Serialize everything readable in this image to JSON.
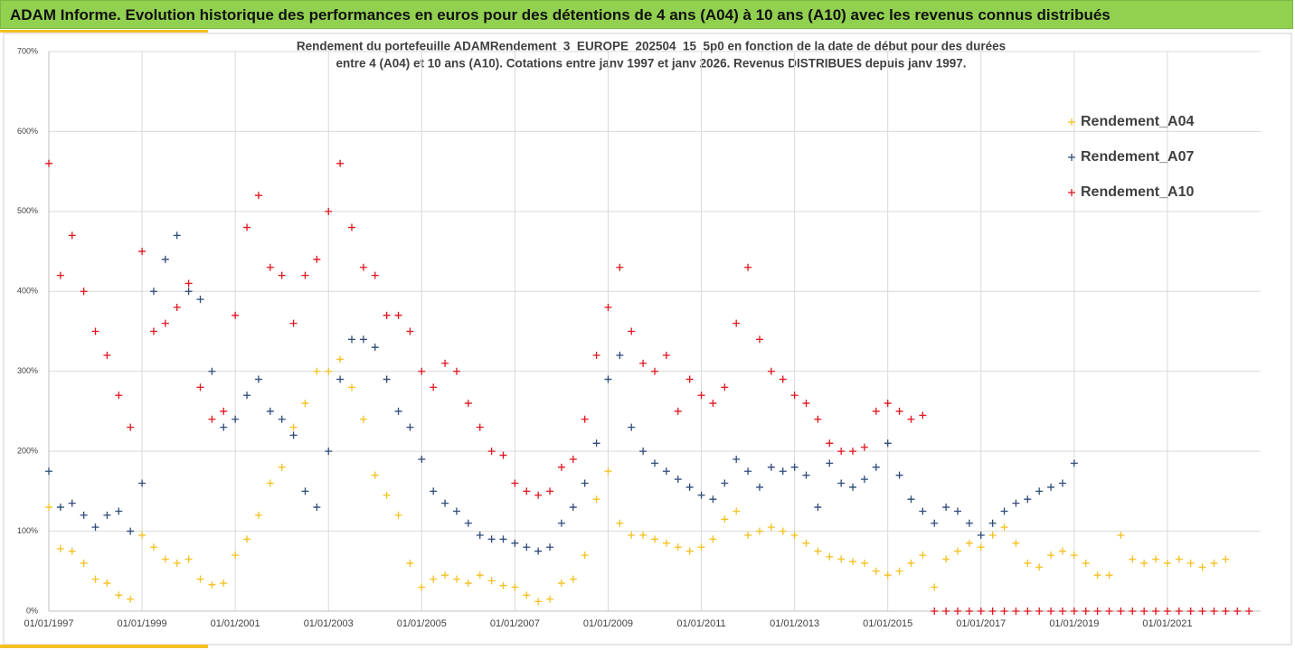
{
  "header": {
    "title": "ADAM Informe. Evolution historique des performances en euros pour des détentions de 4 ans (A04) à 10 ans (A10) avec les revenus connus distribués"
  },
  "chart_data": {
    "type": "scatter",
    "title_lines": [
      "Rendement du portefeuille ADAMRendement_3_EUROPE_202504_15_5p0  en fonction de la date de début pour des durées",
      "entre 4 (A04) et 10 ans (A10). Cotations entre janv 1997 et janv 2026. Revenus DISTRIBUES depuis janv 1997."
    ],
    "x": [
      1997,
      1997.25,
      1997.5,
      1997.75,
      1998,
      1998.25,
      1998.5,
      1998.75,
      1999,
      1999.25,
      1999.5,
      1999.75,
      2000,
      2000.25,
      2000.5,
      2000.75,
      2001,
      2001.25,
      2001.5,
      2001.75,
      2002,
      2002.25,
      2002.5,
      2002.75,
      2003,
      2003.25,
      2003.5,
      2003.75,
      2004,
      2004.25,
      2004.5,
      2004.75,
      2005,
      2005.25,
      2005.5,
      2005.75,
      2006,
      2006.25,
      2006.5,
      2006.75,
      2007,
      2007.25,
      2007.5,
      2007.75,
      2008,
      2008.25,
      2008.5,
      2008.75,
      2009,
      2009.25,
      2009.5,
      2009.75,
      2010,
      2010.25,
      2010.5,
      2010.75,
      2011,
      2011.25,
      2011.5,
      2011.75,
      2012,
      2012.25,
      2012.5,
      2012.75,
      2013,
      2013.25,
      2013.5,
      2013.75,
      2014,
      2014.25,
      2014.5,
      2014.75,
      2015,
      2015.25,
      2015.5,
      2015.75,
      2016,
      2016.25,
      2016.5,
      2016.75,
      2017,
      2017.25,
      2017.5,
      2017.75,
      2018,
      2018.25,
      2018.5,
      2018.75,
      2019,
      2019.25,
      2019.5,
      2019.75,
      2020,
      2020.25,
      2020.5,
      2020.75,
      2021,
      2021.25,
      2021.5,
      2021.75,
      2022,
      2022.25,
      2022.5,
      2022.75
    ],
    "series": [
      {
        "name": "Rendement_A04",
        "color": "#f5c021",
        "values": [
          130,
          78,
          75,
          60,
          40,
          35,
          20,
          15,
          95,
          80,
          65,
          60,
          65,
          40,
          33,
          35,
          70,
          90,
          120,
          160,
          180,
          230,
          260,
          300,
          300,
          315,
          280,
          240,
          170,
          145,
          120,
          60,
          30,
          40,
          45,
          40,
          35,
          45,
          38,
          32,
          30,
          20,
          12,
          15,
          35,
          40,
          70,
          140,
          175,
          110,
          95,
          95,
          90,
          85,
          80,
          75,
          80,
          90,
          115,
          125,
          95,
          100,
          105,
          100,
          95,
          85,
          75,
          68,
          65,
          62,
          60,
          50,
          45,
          50,
          60,
          70,
          30,
          65,
          75,
          85,
          80,
          95,
          105,
          85,
          60,
          55,
          70,
          75,
          70,
          60,
          45,
          45,
          95,
          65,
          60,
          65,
          60,
          65,
          60,
          55,
          60,
          65,
          null,
          null
        ]
      },
      {
        "name": "Rendement_A07",
        "color": "#2f4a7a",
        "values": [
          175,
          130,
          135,
          120,
          105,
          120,
          125,
          100,
          160,
          400,
          440,
          470,
          400,
          390,
          300,
          230,
          240,
          270,
          290,
          250,
          240,
          220,
          150,
          130,
          200,
          290,
          340,
          340,
          330,
          290,
          250,
          230,
          190,
          150,
          135,
          125,
          110,
          95,
          90,
          90,
          85,
          80,
          75,
          80,
          110,
          130,
          160,
          210,
          290,
          320,
          230,
          200,
          185,
          175,
          165,
          155,
          145,
          140,
          160,
          190,
          175,
          155,
          180,
          175,
          180,
          170,
          130,
          185,
          160,
          155,
          165,
          180,
          210,
          170,
          140,
          125,
          110,
          130,
          125,
          110,
          95,
          110,
          125,
          135,
          140,
          150,
          155,
          160,
          185,
          null,
          null,
          null,
          null,
          null,
          null,
          null,
          null,
          null,
          null,
          null,
          null,
          null,
          null,
          null
        ]
      },
      {
        "name": "Rendement_A10",
        "color": "#e0141e",
        "values": [
          560,
          420,
          470,
          400,
          350,
          320,
          270,
          230,
          450,
          350,
          360,
          380,
          410,
          280,
          240,
          250,
          370,
          480,
          520,
          430,
          420,
          360,
          420,
          440,
          500,
          560,
          480,
          430,
          420,
          370,
          370,
          350,
          300,
          280,
          310,
          300,
          260,
          230,
          200,
          195,
          160,
          150,
          145,
          150,
          180,
          190,
          240,
          320,
          380,
          430,
          350,
          310,
          300,
          320,
          250,
          290,
          270,
          260,
          280,
          360,
          430,
          340,
          300,
          290,
          270,
          260,
          240,
          210,
          200,
          200,
          205,
          250,
          260,
          250,
          240,
          245,
          0,
          0,
          0,
          0,
          0,
          0,
          0,
          0,
          0,
          0,
          0,
          0,
          0,
          0,
          0,
          0,
          0,
          0,
          0,
          0,
          0,
          0,
          0,
          0,
          0,
          0,
          0,
          0
        ]
      }
    ],
    "xlim": [
      1997,
      2023
    ],
    "xticks": [
      {
        "value": 1997,
        "label": "01/01/1997"
      },
      {
        "value": 1999,
        "label": "01/01/1999"
      },
      {
        "value": 2001,
        "label": "01/01/2001"
      },
      {
        "value": 2003,
        "label": "01/01/2003"
      },
      {
        "value": 2005,
        "label": "01/01/2005"
      },
      {
        "value": 2007,
        "label": "01/01/2007"
      },
      {
        "value": 2009,
        "label": "01/01/2009"
      },
      {
        "value": 2011,
        "label": "01/01/2011"
      },
      {
        "value": 2013,
        "label": "01/01/2013"
      },
      {
        "value": 2015,
        "label": "01/01/2015"
      },
      {
        "value": 2017,
        "label": "01/01/2017"
      },
      {
        "value": 2019,
        "label": "01/01/2019"
      },
      {
        "value": 2021,
        "label": "01/01/2021"
      }
    ],
    "ylim": [
      0,
      700
    ],
    "yticks": [
      {
        "value": 0,
        "label": "0%"
      },
      {
        "value": 100,
        "label": "100%"
      },
      {
        "value": 200,
        "label": "200%"
      },
      {
        "value": 300,
        "label": "300%"
      },
      {
        "value": 400,
        "label": "400%"
      },
      {
        "value": 500,
        "label": "500%"
      },
      {
        "value": 600,
        "label": "600%"
      },
      {
        "value": 700,
        "label": "700%"
      }
    ],
    "grid": true,
    "legend": "upper right"
  }
}
